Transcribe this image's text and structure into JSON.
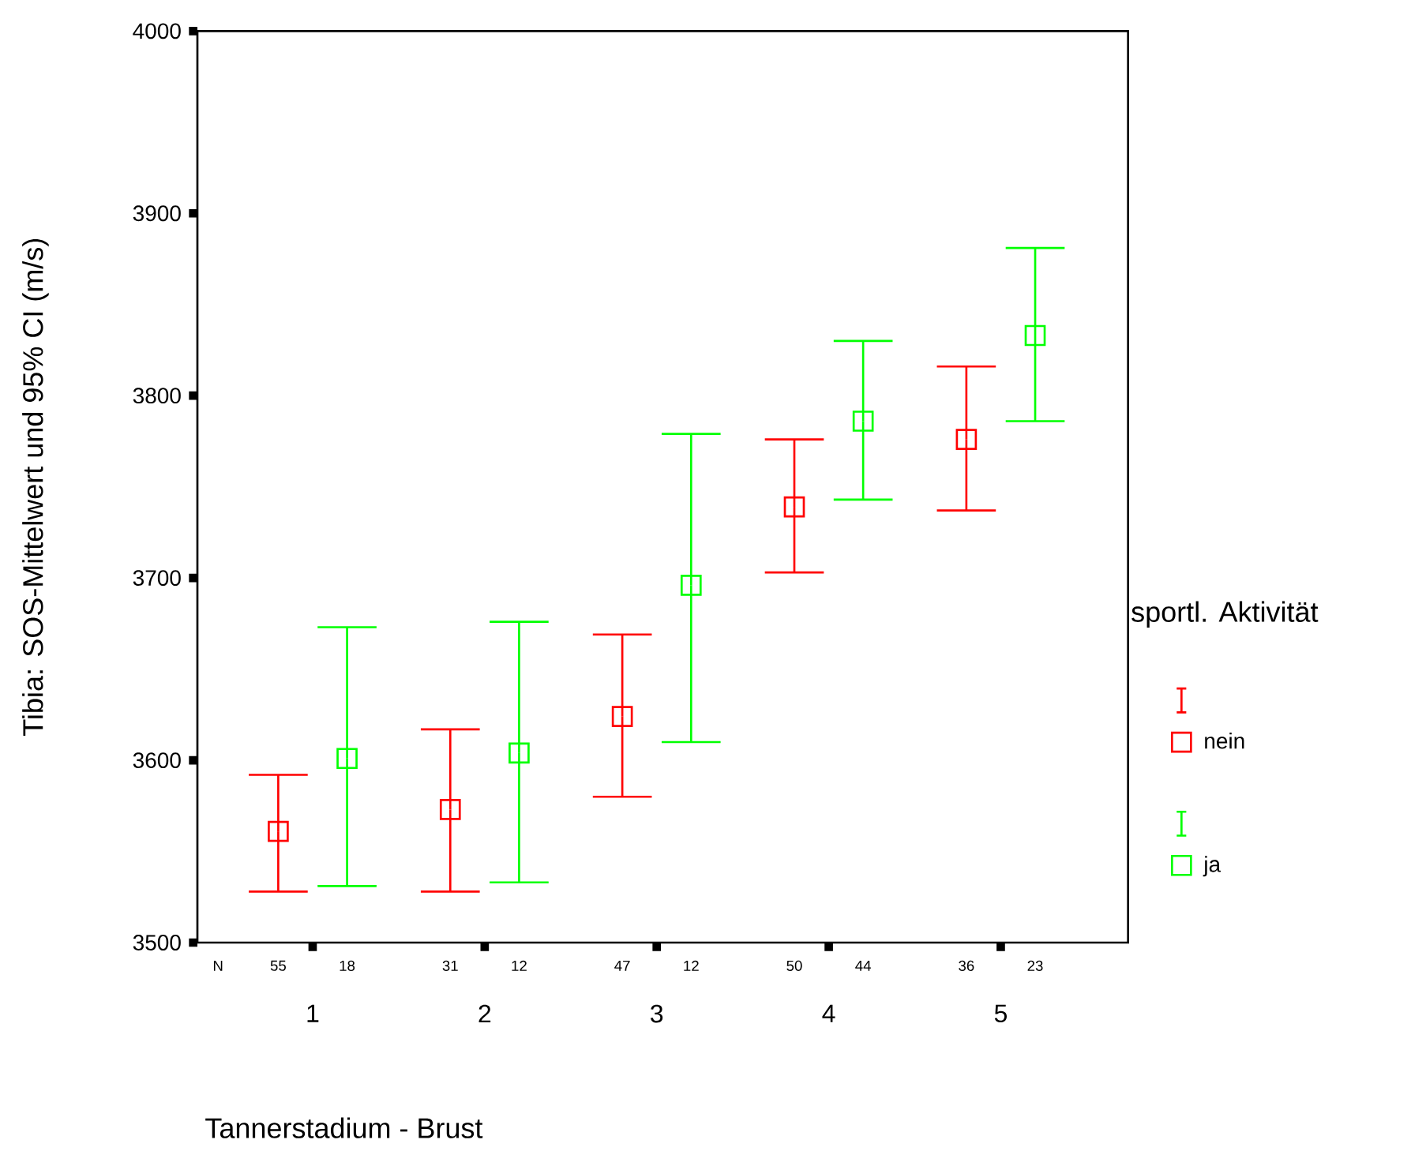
{
  "chart_data": {
    "type": "scatter",
    "xlabel": "Tannerstadium - Brust",
    "ylabel": "Tibia: SOS-Mittelwert und 95% CI (m/s)",
    "legend_title": "sportl. Aktivität",
    "categories": [
      "1",
      "2",
      "3",
      "4",
      "5"
    ],
    "series": [
      {
        "name": "nein",
        "color": "#ff0000",
        "values": [
          3561,
          3573,
          3624,
          3739,
          3776
        ],
        "errors": [
          [
            3528,
            3592
          ],
          [
            3528,
            3617
          ],
          [
            3580,
            3669
          ],
          [
            3703,
            3776
          ],
          [
            3737,
            3816
          ]
        ]
      },
      {
        "name": "ja",
        "color": "#00ff00",
        "values": [
          3601,
          3604,
          3696,
          3786,
          3833
        ],
        "errors": [
          [
            3531,
            3673
          ],
          [
            3533,
            3676
          ],
          [
            3610,
            3779
          ],
          [
            3743,
            3830
          ],
          [
            3786,
            3881
          ]
        ]
      }
    ],
    "ylim": [
      3500,
      4000
    ],
    "yticks": [
      3500,
      3600,
      3700,
      3800,
      3900,
      4000
    ],
    "grid": false,
    "legend": "right",
    "marker": "square",
    "annotations": [
      "N",
      "55",
      "18",
      "31",
      "12",
      "47",
      "12",
      "50",
      "44",
      "36",
      "23"
    ]
  }
}
